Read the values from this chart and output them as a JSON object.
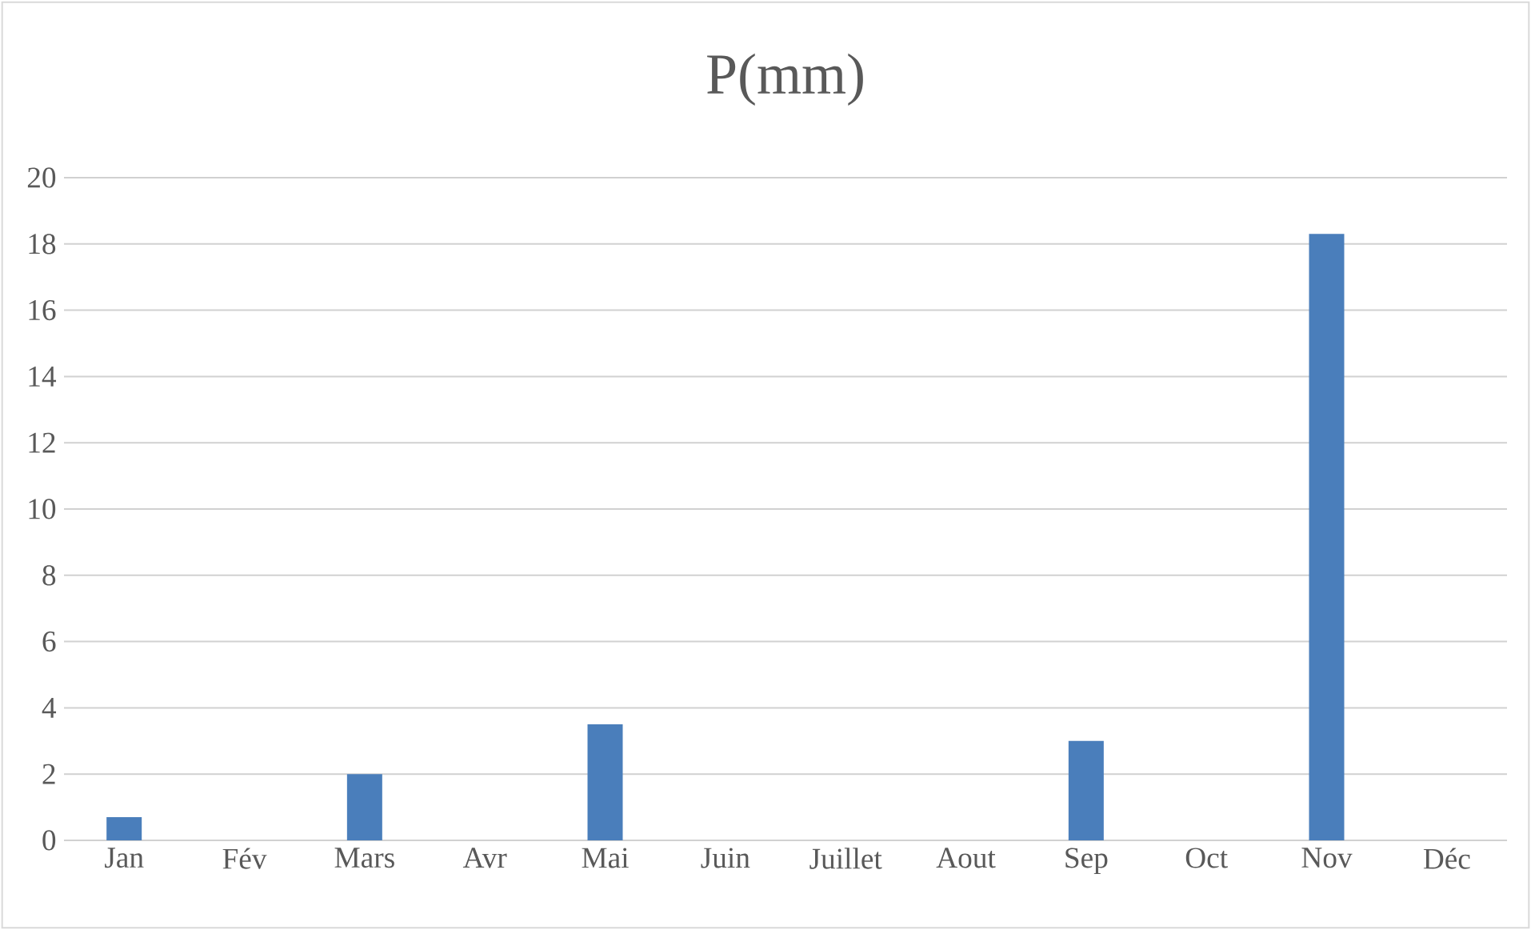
{
  "chart_data": {
    "type": "bar",
    "title": "P(mm)",
    "categories": [
      "Jan",
      "Fév",
      "Mars",
      "Avr",
      "Mai",
      "Juin",
      "Juillet",
      "Aout",
      "Sep",
      "Oct",
      "Nov",
      "Déc"
    ],
    "values": [
      0.7,
      0,
      2.0,
      0,
      3.5,
      0,
      0,
      0,
      3.0,
      0,
      18.3,
      0
    ],
    "color": "#4a7ebb",
    "ylim": [
      0,
      20
    ],
    "yticks": [
      0,
      2,
      4,
      6,
      8,
      10,
      12,
      14,
      16,
      18,
      20
    ],
    "grid": "y"
  }
}
